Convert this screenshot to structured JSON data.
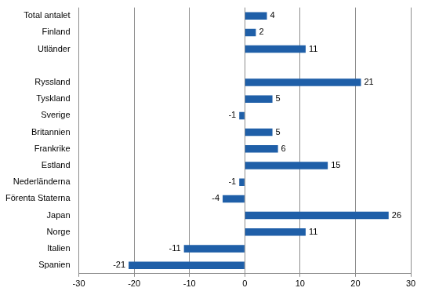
{
  "chart_data": {
    "type": "bar",
    "orientation": "horizontal",
    "categories": [
      "Total antalet",
      "Finland",
      "Utländer",
      null,
      "Ryssland",
      "Tyskland",
      "Sverige",
      "Britannien",
      "Frankrike",
      "Estland",
      "Nederländerna",
      "Förenta Staterna",
      "Japan",
      "Norge",
      "Italien",
      "Spanien"
    ],
    "values": [
      4,
      2,
      11,
      null,
      21,
      5,
      -1,
      5,
      6,
      15,
      -1,
      -4,
      26,
      11,
      -11,
      -21
    ],
    "color": "#1f5fa8",
    "xlim": [
      -30,
      30
    ],
    "xticks": [
      -30,
      -20,
      -10,
      0,
      10,
      20,
      30
    ],
    "grid": true,
    "data_labels": true
  }
}
